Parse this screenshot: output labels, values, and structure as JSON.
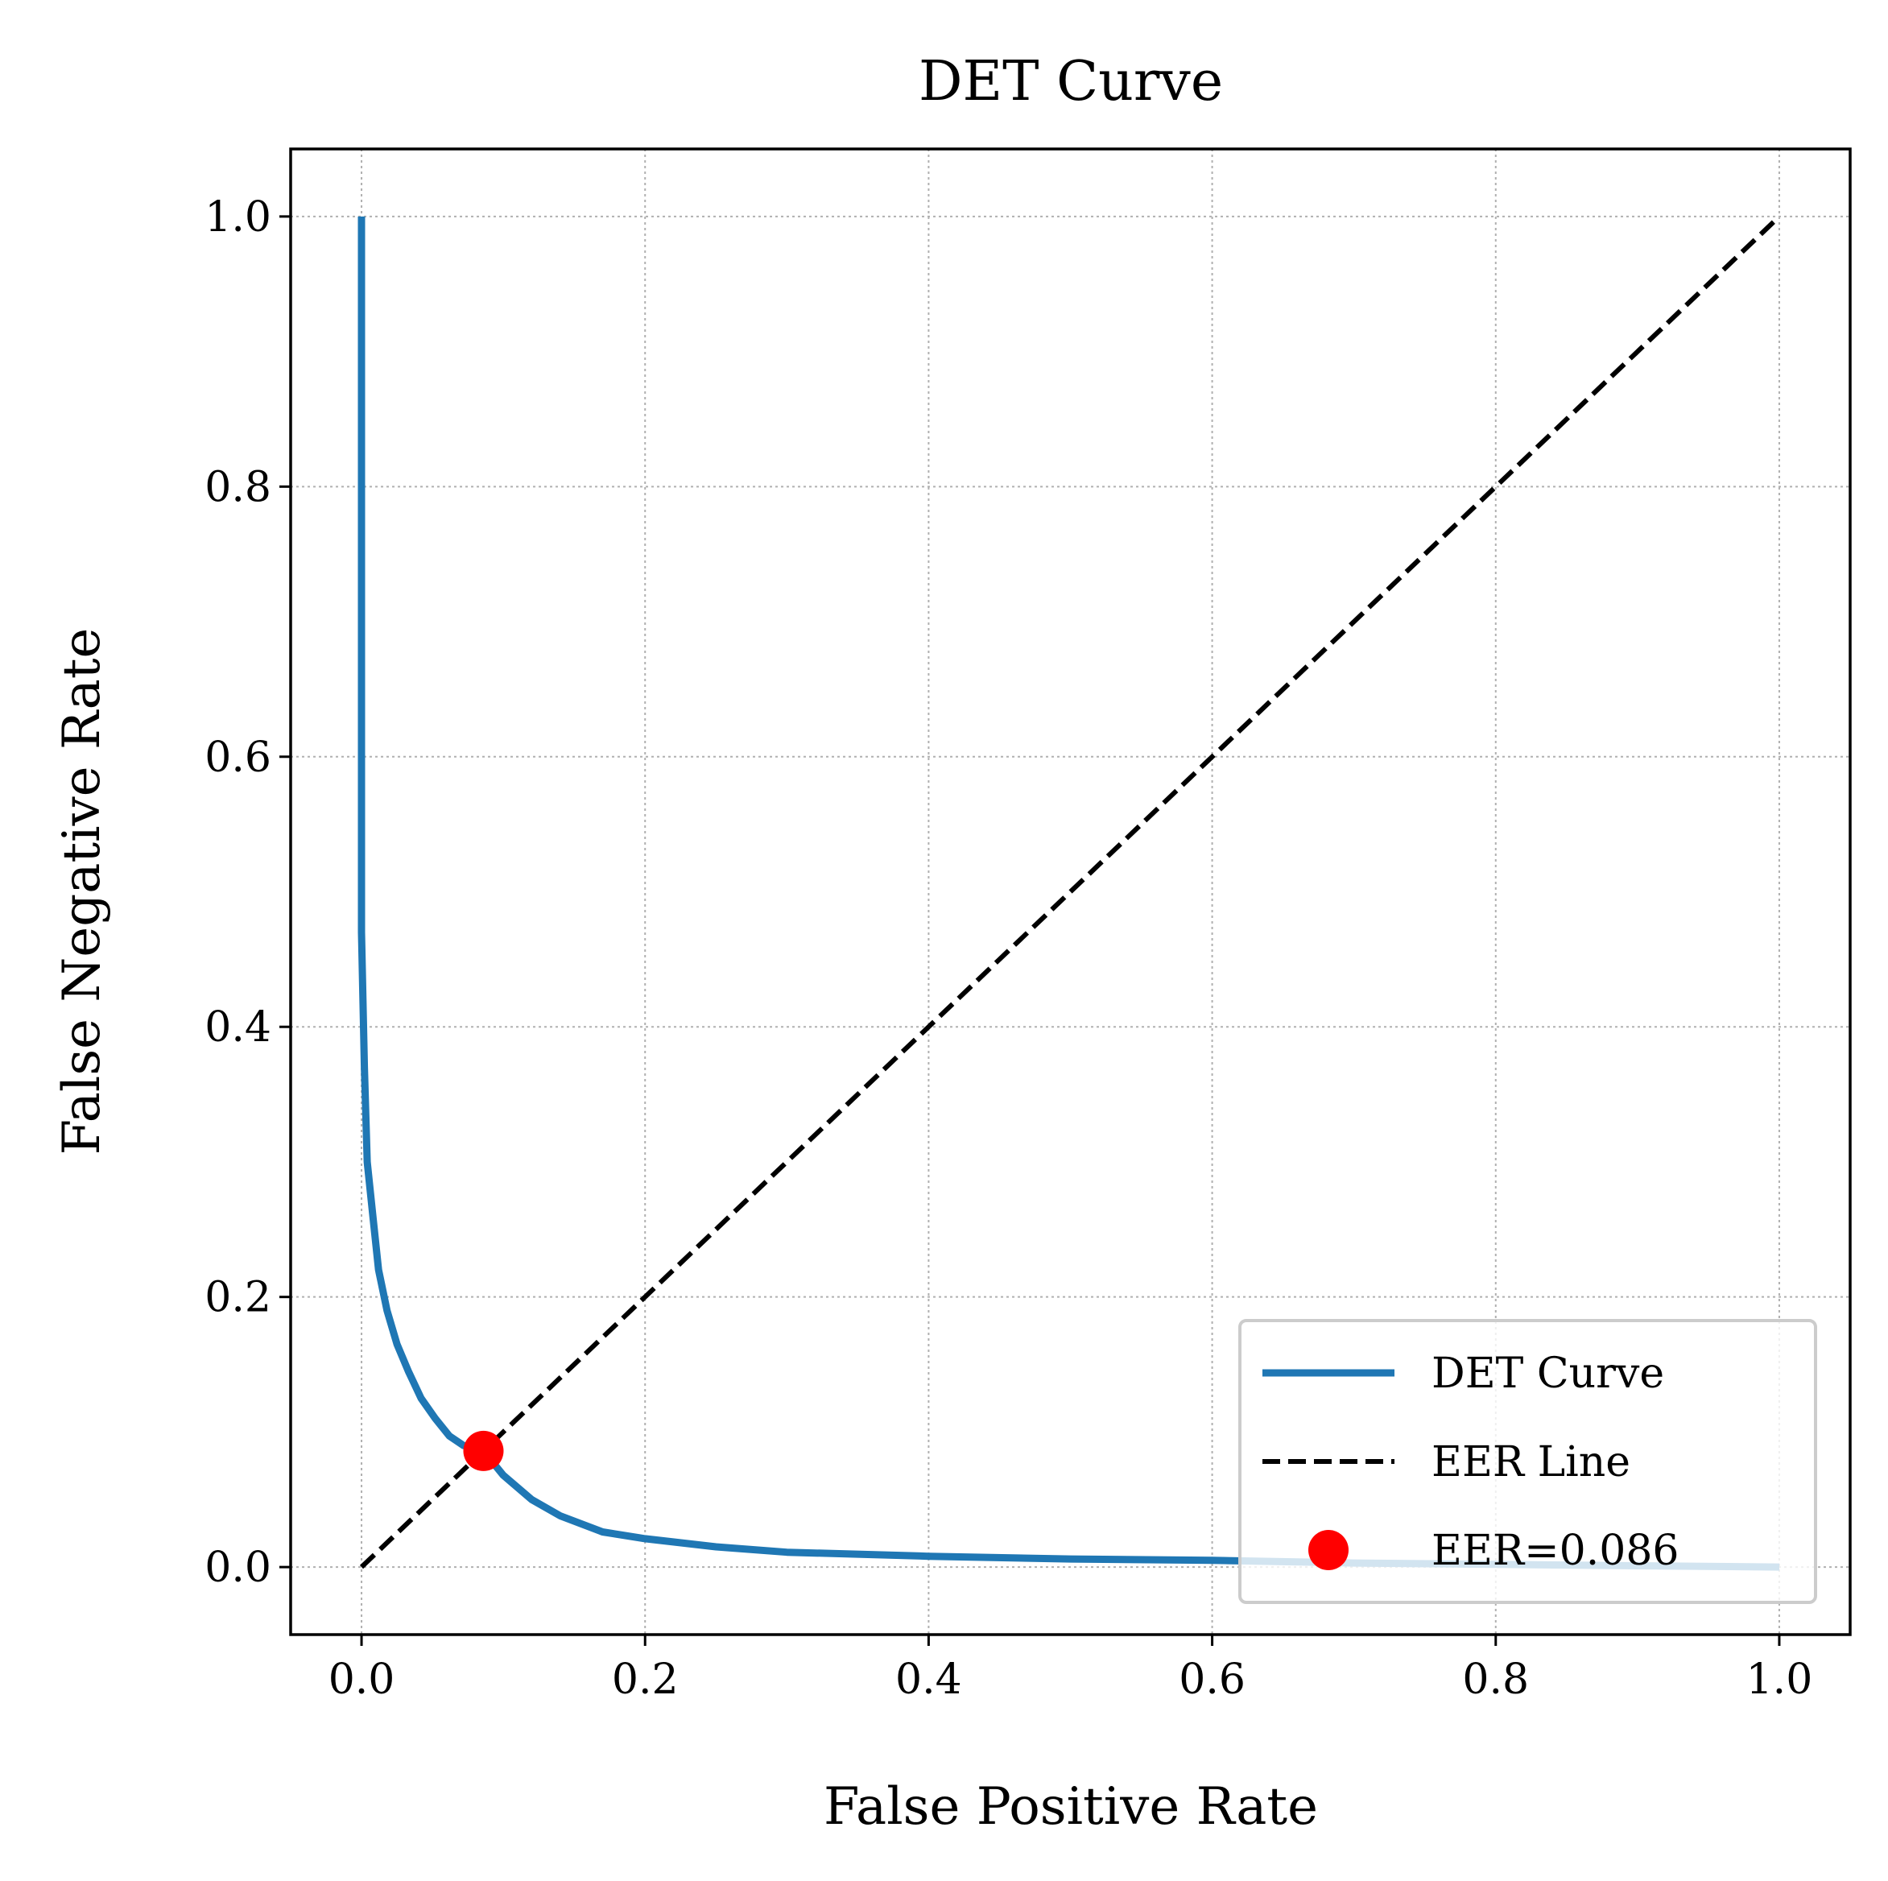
{
  "chart_data": {
    "type": "line",
    "title": "DET Curve",
    "xlabel": "False Positive Rate",
    "ylabel": "False Negative Rate",
    "xlim": [
      -0.05,
      1.05
    ],
    "ylim": [
      -0.05,
      1.05
    ],
    "xticks": [
      "0.0",
      "0.2",
      "0.4",
      "0.6",
      "0.8",
      "1.0"
    ],
    "yticks": [
      "0.0",
      "0.2",
      "0.4",
      "0.6",
      "0.8",
      "1.0"
    ],
    "grid": true,
    "legend_position": "lower-right",
    "series": [
      {
        "name": "DET Curve",
        "color": "#1f77b4",
        "style": "solid",
        "x": [
          0.0,
          0.0,
          0.0,
          0.002,
          0.004,
          0.008,
          0.012,
          0.018,
          0.025,
          0.033,
          0.042,
          0.052,
          0.062,
          0.072,
          0.082,
          0.086,
          0.1,
          0.12,
          0.14,
          0.17,
          0.2,
          0.25,
          0.3,
          0.4,
          0.5,
          0.6,
          0.7,
          0.8,
          0.9,
          1.0
        ],
        "y": [
          1.0,
          0.7,
          0.47,
          0.37,
          0.3,
          0.26,
          0.22,
          0.19,
          0.165,
          0.145,
          0.125,
          0.11,
          0.097,
          0.09,
          0.087,
          0.086,
          0.068,
          0.05,
          0.038,
          0.026,
          0.021,
          0.015,
          0.011,
          0.008,
          0.006,
          0.005,
          0.003,
          0.002,
          0.001,
          0.0
        ]
      },
      {
        "name": "EER Line",
        "color": "#000000",
        "style": "dashed",
        "x": [
          0.0,
          1.0
        ],
        "y": [
          0.0,
          1.0
        ]
      }
    ],
    "points": [
      {
        "name": "EER=0.086",
        "color": "#ff0000",
        "x": 0.086,
        "y": 0.086
      }
    ]
  }
}
